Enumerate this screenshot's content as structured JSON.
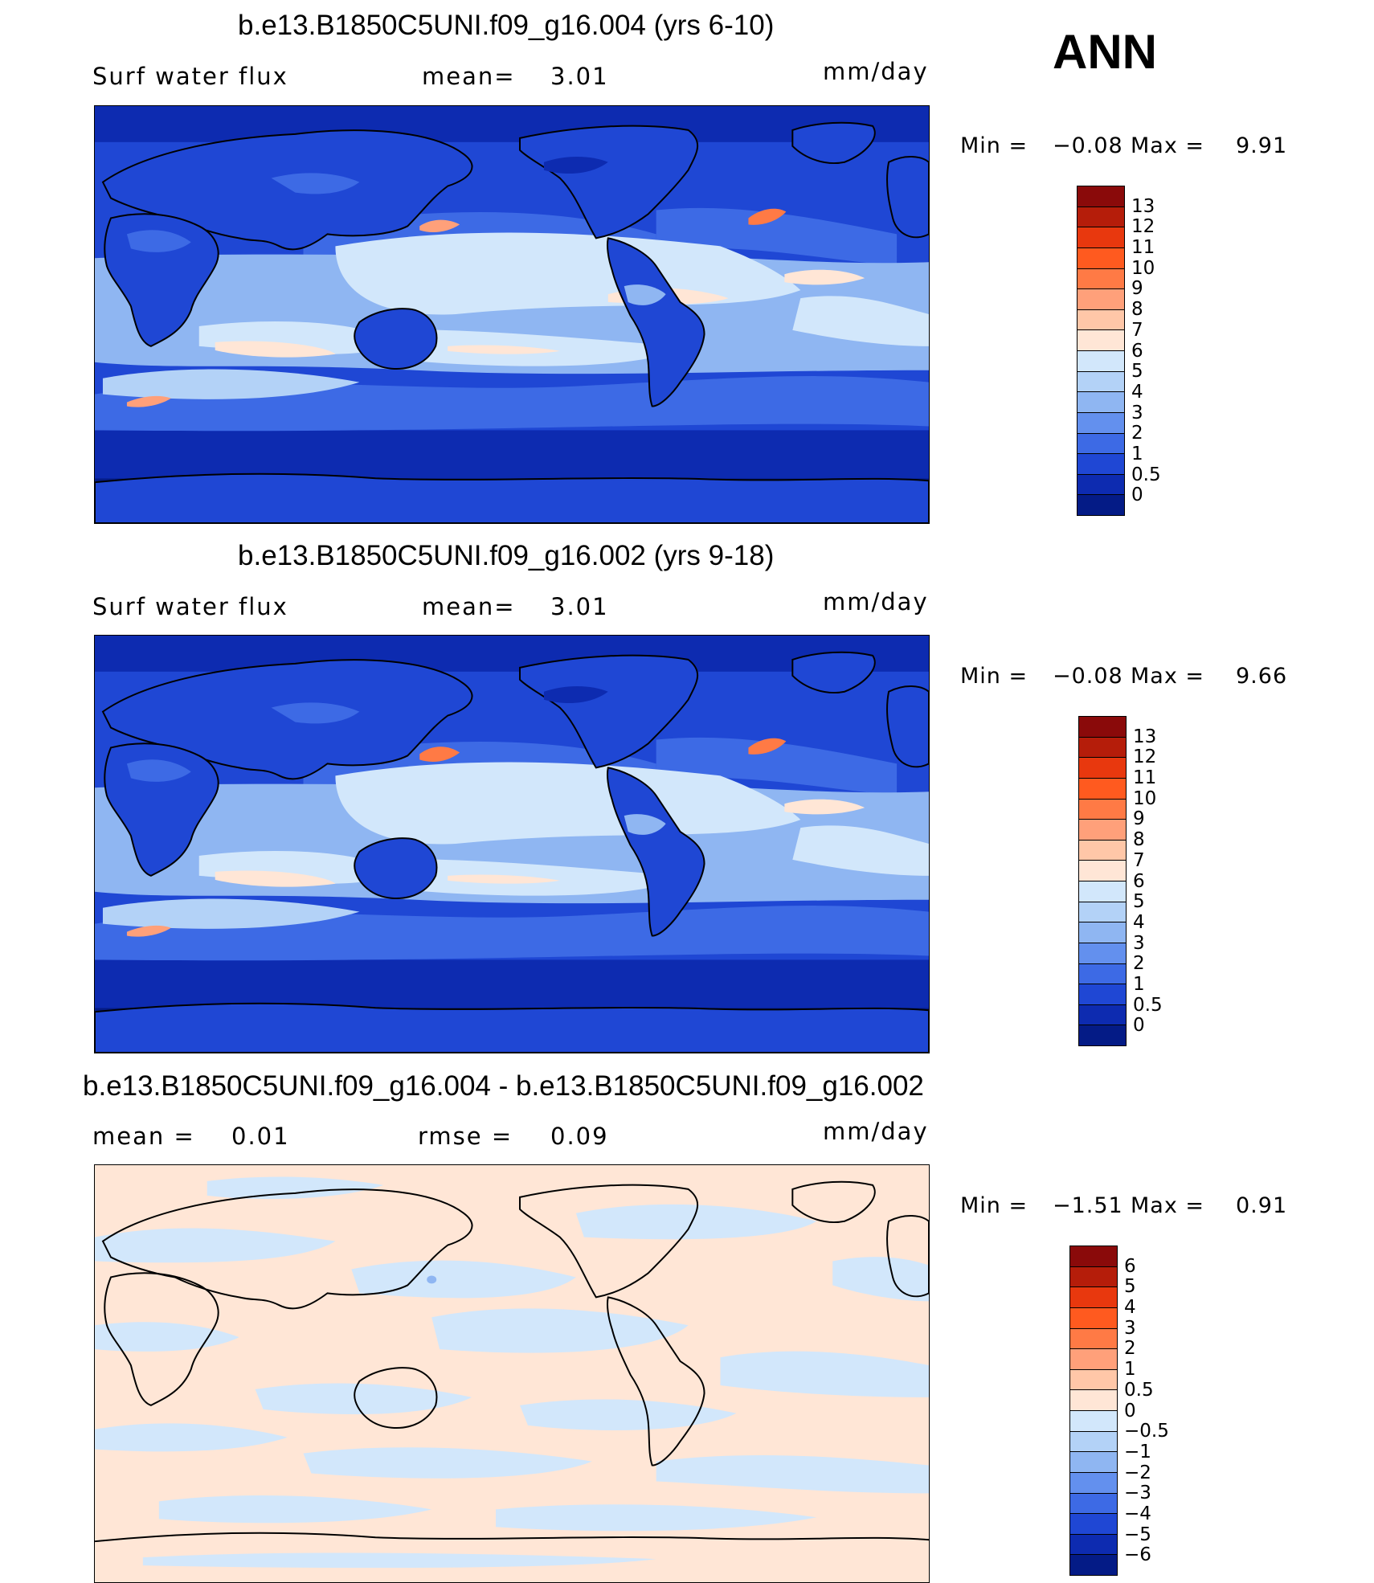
{
  "season": "ANN",
  "panels": [
    {
      "title": "b.e13.B1850C5UNI.f09_g16.004 (yrs 6-10)",
      "left_label": "Surf water flux",
      "mid_label": "mean=",
      "mid_value": "3.01",
      "units": "mm/day",
      "min_label": "Min =",
      "min_value": "−0.08",
      "max_label": "Max =",
      "max_value": "9.91",
      "colorbar_ticks": [
        "13",
        "12",
        "11",
        "10",
        "9",
        "8",
        "7",
        "6",
        "5",
        "4",
        "3",
        "2",
        "1",
        "0.5",
        "0"
      ],
      "colorbar_colors": [
        "#8a0a0a",
        "#b51d0a",
        "#e8380e",
        "#ff5a1f",
        "#ff7a45",
        "#ffa07a",
        "#ffc7a8",
        "#ffe6d6",
        "#d2e7fb",
        "#b3d2f7",
        "#8fb6f2",
        "#6390ee",
        "#3d6ae5",
        "#1f47d4",
        "#0d2bb0",
        "#041b86"
      ]
    },
    {
      "title": "b.e13.B1850C5UNI.f09_g16.002 (yrs 9-18)",
      "left_label": "Surf water flux",
      "mid_label": "mean=",
      "mid_value": "3.01",
      "units": "mm/day",
      "min_label": "Min =",
      "min_value": "−0.08",
      "max_label": "Max =",
      "max_value": "9.66",
      "colorbar_ticks": [
        "13",
        "12",
        "11",
        "10",
        "9",
        "8",
        "7",
        "6",
        "5",
        "4",
        "3",
        "2",
        "1",
        "0.5",
        "0"
      ],
      "colorbar_colors": [
        "#8a0a0a",
        "#b51d0a",
        "#e8380e",
        "#ff5a1f",
        "#ff7a45",
        "#ffa07a",
        "#ffc7a8",
        "#ffe6d6",
        "#d2e7fb",
        "#b3d2f7",
        "#8fb6f2",
        "#6390ee",
        "#3d6ae5",
        "#1f47d4",
        "#0d2bb0",
        "#041b86"
      ]
    },
    {
      "title": "b.e13.B1850C5UNI.f09_g16.004 - b.e13.B1850C5UNI.f09_g16.002",
      "left_label": "mean =",
      "left_value": "0.01",
      "mid_label": "rmse =",
      "mid_value": "0.09",
      "units": "mm/day",
      "min_label": "Min =",
      "min_value": "−1.51",
      "max_label": "Max =",
      "max_value": "0.91",
      "colorbar_ticks": [
        "6",
        "5",
        "4",
        "3",
        "2",
        "1",
        "0.5",
        "0",
        "−0.5",
        "−1",
        "−2",
        "−3",
        "−4",
        "−5",
        "−6"
      ],
      "colorbar_colors": [
        "#8a0a0a",
        "#b51d0a",
        "#e8380e",
        "#ff5a1f",
        "#ff7a45",
        "#ffa07a",
        "#ffc7a8",
        "#ffe6d6",
        "#d2e7fb",
        "#b3d2f7",
        "#8fb6f2",
        "#6390ee",
        "#3d6ae5",
        "#1f47d4",
        "#0d2bb0",
        "#041b86"
      ]
    }
  ]
}
